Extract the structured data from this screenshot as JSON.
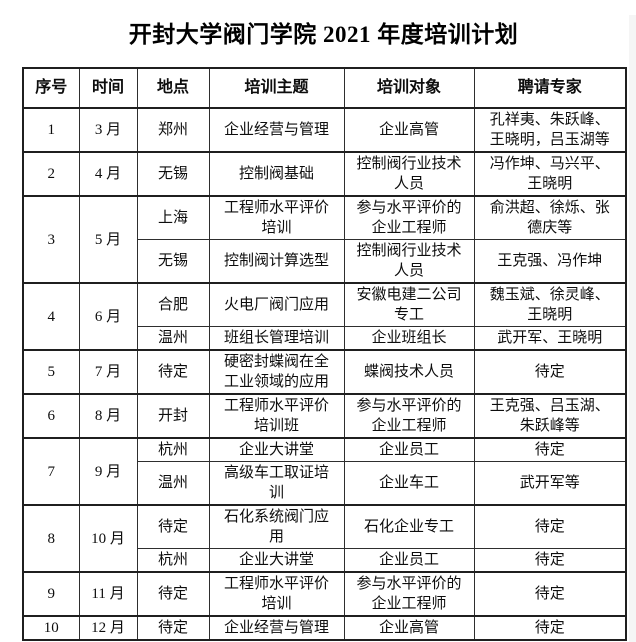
{
  "title": "开封大学阀门学院 2021 年度培训计划",
  "table": {
    "headers": [
      "序号",
      "时间",
      "地点",
      "培训主题",
      "培训对象",
      "聘请专家"
    ],
    "rows": [
      {
        "no": "1",
        "time": "3 月",
        "subs": [
          {
            "place": "郑州",
            "topic": "企业经营与管理",
            "target": "企业高管",
            "experts": "孔祥夷、朱跃峰、\n王晓明，吕玉湖等"
          }
        ]
      },
      {
        "no": "2",
        "time": "4 月",
        "subs": [
          {
            "place": "无锡",
            "topic": "控制阀基础",
            "target": "控制阀行业技术\n人员",
            "experts": "冯作坤、马兴平、\n王晓明"
          }
        ]
      },
      {
        "no": "3",
        "time": "5 月",
        "subs": [
          {
            "place": "上海",
            "topic": "工程师水平评价\n培训",
            "target": "参与水平评价的\n企业工程师",
            "experts": "俞洪超、徐烁、张\n德庆等"
          },
          {
            "place": "无锡",
            "topic": "控制阀计算选型",
            "target": "控制阀行业技术\n人员",
            "experts": "王克强、冯作坤"
          }
        ]
      },
      {
        "no": "4",
        "time": "6 月",
        "subs": [
          {
            "place": "合肥",
            "topic": "火电厂阀门应用",
            "target": "安徽电建二公司\n专工",
            "experts": "魏玉斌、徐灵峰、\n王晓明"
          },
          {
            "place": "温州",
            "topic": "班组长管理培训",
            "target": "企业班组长",
            "experts": "武开军、王晓明"
          }
        ]
      },
      {
        "no": "5",
        "time": "7 月",
        "subs": [
          {
            "place": "待定",
            "topic": "硬密封蝶阀在全\n工业领域的应用",
            "target": "蝶阀技术人员",
            "experts": "待定"
          }
        ]
      },
      {
        "no": "6",
        "time": "8 月",
        "subs": [
          {
            "place": "开封",
            "topic": "工程师水平评价\n培训班",
            "target": "参与水平评价的\n企业工程师",
            "experts": "王克强、吕玉湖、\n朱跃峰等"
          }
        ]
      },
      {
        "no": "7",
        "time": "9 月",
        "subs": [
          {
            "place": "杭州",
            "topic": "企业大讲堂",
            "target": "企业员工",
            "experts": "待定"
          },
          {
            "place": "温州",
            "topic": "高级车工取证培\n训",
            "target": "企业车工",
            "experts": "武开军等"
          }
        ]
      },
      {
        "no": "8",
        "time": "10 月",
        "subs": [
          {
            "place": "待定",
            "topic": "石化系统阀门应\n用",
            "target": "石化企业专工",
            "experts": "待定"
          },
          {
            "place": "杭州",
            "topic": "企业大讲堂",
            "target": "企业员工",
            "experts": "待定"
          }
        ]
      },
      {
        "no": "9",
        "time": "11 月",
        "subs": [
          {
            "place": "待定",
            "topic": "工程师水平评价\n培训",
            "target": "参与水平评价的\n企业工程师",
            "experts": "待定"
          }
        ]
      },
      {
        "no": "10",
        "time": "12 月",
        "subs": [
          {
            "place": "待定",
            "topic": "企业经营与管理",
            "target": "企业高管",
            "experts": "待定"
          }
        ]
      }
    ]
  }
}
